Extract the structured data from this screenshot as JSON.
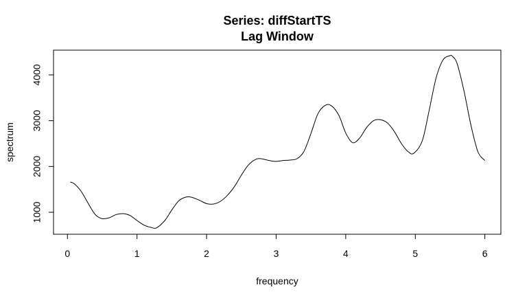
{
  "chart_data": {
    "type": "line",
    "title": "Series: diffStartTS",
    "subtitle": "Lag Window",
    "xlabel": "frequency",
    "ylabel": "spectrum",
    "xlim": [
      -0.2,
      6.23
    ],
    "ylim": [
      520,
      4540
    ],
    "x_ticks": [
      0,
      1,
      2,
      3,
      4,
      5,
      6
    ],
    "x_tick_labels": [
      "0",
      "1",
      "2",
      "3",
      "4",
      "5",
      "6"
    ],
    "y_ticks": [
      1000,
      2000,
      3000,
      4000
    ],
    "y_tick_labels": [
      "1000",
      "2000",
      "3000",
      "4000"
    ],
    "grid": false,
    "legend": "none",
    "line_color": "#000000",
    "series": [
      {
        "x": [
          0.04,
          0.1,
          0.2,
          0.3,
          0.4,
          0.5,
          0.6,
          0.7,
          0.8,
          0.9,
          1.0,
          1.1,
          1.2,
          1.28,
          1.4,
          1.5,
          1.6,
          1.7,
          1.78,
          1.9,
          2.0,
          2.1,
          2.2,
          2.3,
          2.4,
          2.5,
          2.6,
          2.7,
          2.78,
          2.9,
          3.0,
          3.1,
          3.2,
          3.3,
          3.4,
          3.5,
          3.6,
          3.7,
          3.79,
          3.9,
          4.0,
          4.1,
          4.2,
          4.3,
          4.4,
          4.5,
          4.6,
          4.7,
          4.8,
          4.9,
          4.98,
          5.1,
          5.2,
          5.3,
          5.4,
          5.5,
          5.53,
          5.6,
          5.7,
          5.8,
          5.9,
          6.0
        ],
        "y": [
          1660,
          1620,
          1450,
          1190,
          950,
          860,
          880,
          950,
          970,
          930,
          820,
          720,
          670,
          660,
          820,
          1050,
          1250,
          1330,
          1330,
          1260,
          1190,
          1180,
          1240,
          1370,
          1560,
          1810,
          2030,
          2150,
          2170,
          2130,
          2110,
          2130,
          2140,
          2170,
          2330,
          2720,
          3150,
          3330,
          3330,
          3120,
          2730,
          2520,
          2620,
          2850,
          3000,
          3020,
          2950,
          2760,
          2500,
          2320,
          2290,
          2560,
          3230,
          3940,
          4330,
          4420,
          4410,
          4250,
          3650,
          2900,
          2320,
          2130
        ]
      }
    ]
  }
}
